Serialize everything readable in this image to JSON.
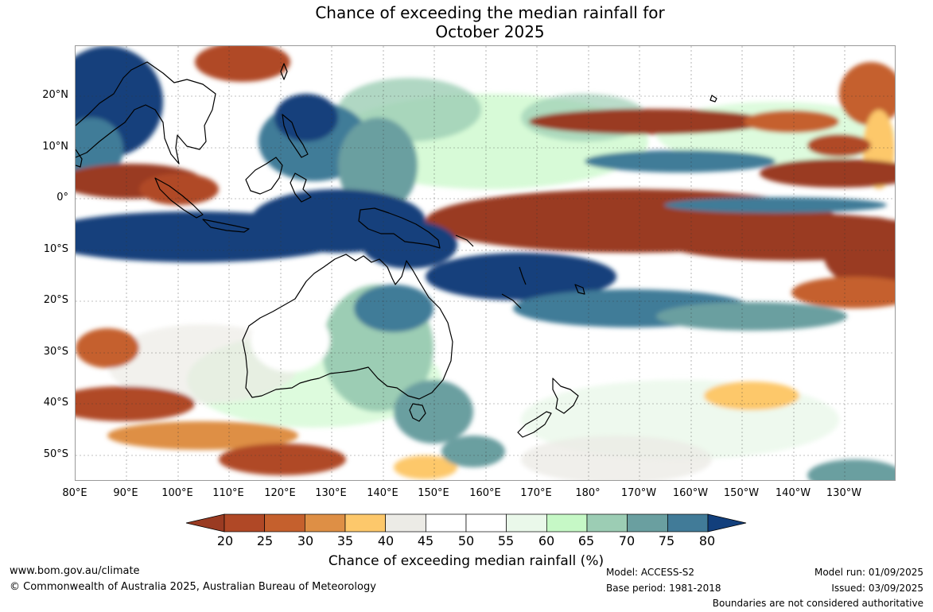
{
  "title": {
    "line1": "Chance of exceeding the median rainfall for",
    "line2": "October 2025"
  },
  "map": {
    "latitude_labels": [
      "20°N",
      "10°N",
      "0°",
      "10°S",
      "20°S",
      "30°S",
      "40°S",
      "50°S"
    ],
    "longitude_labels": [
      "80°E",
      "90°E",
      "100°E",
      "110°E",
      "120°E",
      "130°E",
      "140°E",
      "150°E",
      "160°E",
      "170°E",
      "180°",
      "170°W",
      "160°W",
      "150°W",
      "140°W",
      "130°W"
    ]
  },
  "legend": {
    "title": "Chance of exceeding median rainfall (%)",
    "ticks": [
      "20",
      "25",
      "30",
      "35",
      "40",
      "45",
      "50",
      "55",
      "60",
      "65",
      "70",
      "75",
      "80"
    ],
    "colors": [
      "#9a3b22",
      "#b04826",
      "#c5602d",
      "#de8f45",
      "#fdc86b",
      "#ecebe6",
      "#ffffff",
      "#ffffff",
      "#eaf8ea",
      "#c6f8c6",
      "#9ccdb4",
      "#6a9fa0",
      "#417b98",
      "#123f7c"
    ]
  },
  "footer": {
    "website": "www.bom.gov.au/climate",
    "copyright": "© Commonwealth of Australia 2025, Australian Bureau of Meteorology",
    "model": "Model: ACCESS-S2",
    "base_period": "Base period: 1981-2018",
    "model_run": "Model run: 01/09/2025",
    "issued": "Issued: 03/09/2025",
    "disclaimer": "Boundaries are not considered authoritative"
  }
}
